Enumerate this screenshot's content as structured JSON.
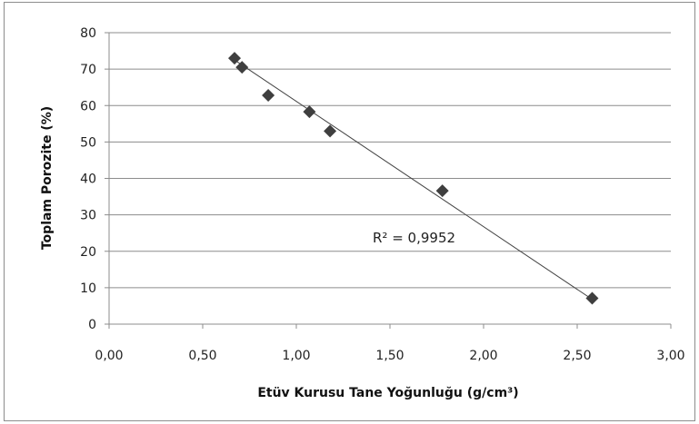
{
  "chart_data": {
    "type": "scatter",
    "title": "",
    "xlabel": "Etüv Kurusu Tane Yoğunluğu (g/cm³)",
    "ylabel": "Toplam Porozite (%)",
    "xlim": [
      0,
      3
    ],
    "ylim": [
      0,
      80
    ],
    "x_ticks": [
      0,
      0.5,
      1,
      1.5,
      2,
      2.5,
      3
    ],
    "x_tick_labels": [
      "0,00",
      "0,50",
      "1,00",
      "1,50",
      "2,00",
      "2,50",
      "3,00"
    ],
    "y_ticks": [
      0,
      10,
      20,
      30,
      40,
      50,
      60,
      70,
      80
    ],
    "y_tick_labels": [
      "0",
      "10",
      "20",
      "30",
      "40",
      "50",
      "60",
      "70",
      "80"
    ],
    "grid": "horizontal",
    "legend": "none",
    "points": [
      {
        "x": 0.67,
        "y": 73.0
      },
      {
        "x": 0.71,
        "y": 70.5
      },
      {
        "x": 0.85,
        "y": 62.8
      },
      {
        "x": 1.07,
        "y": 58.3
      },
      {
        "x": 1.18,
        "y": 53.0
      },
      {
        "x": 1.78,
        "y": 36.6
      },
      {
        "x": 2.58,
        "y": 7.1
      }
    ],
    "trendline": {
      "type": "linear",
      "x": [
        0.67,
        2.58
      ],
      "y": [
        72.5,
        6.8
      ]
    },
    "annotation": "R² = 0,9952",
    "colors": {
      "marker": "#3f3f3f",
      "trendline": "#444444",
      "grid": "#8c8c8c",
      "axis": "#8c8c8c"
    }
  }
}
